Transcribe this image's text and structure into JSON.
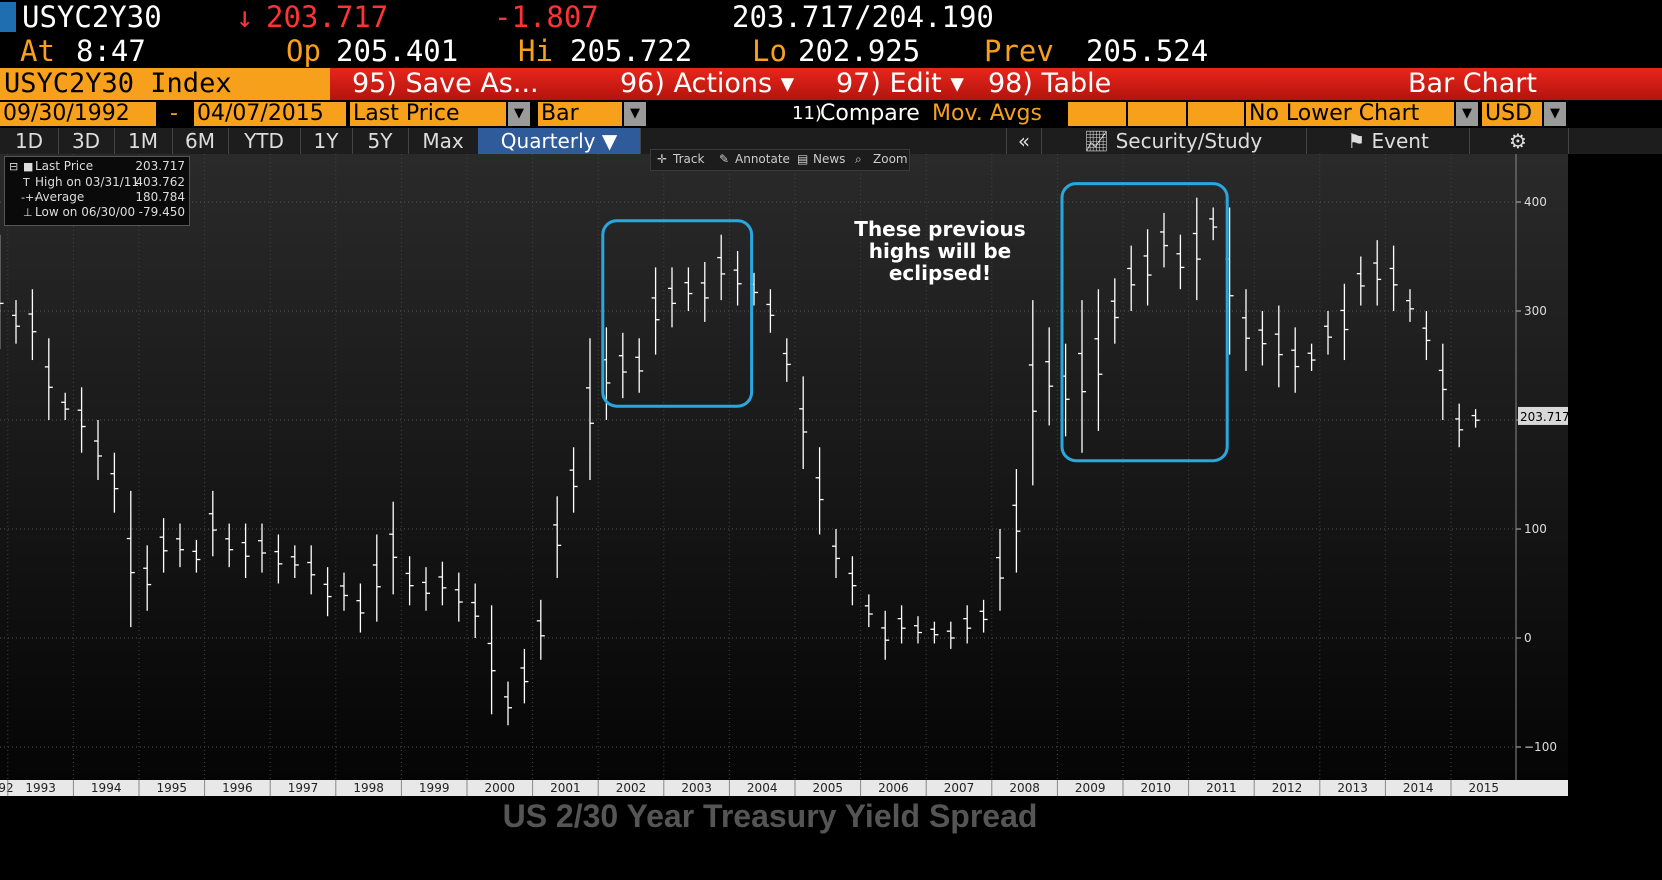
{
  "header": {
    "ticker": "USYC2Y30",
    "change_arrow": "↓",
    "last": "203.717",
    "change": "-1.807",
    "bid_ask": "203.717/204.190",
    "at_label": "At",
    "time": "8:47",
    "open_label": "Op",
    "open": "205.401",
    "high_label": "Hi",
    "high": "205.722",
    "low_label": "Lo",
    "low": "202.925",
    "prev_label": "Prev",
    "prev": "205.524"
  },
  "menu": {
    "index": "USYC2Y30 Index",
    "save_as": "95) Save As...",
    "actions": "96) Actions ▾",
    "edit": "97) Edit ▾",
    "table": "98) Table",
    "chart_type": "Bar Chart"
  },
  "options": {
    "start_date": "09/30/1992",
    "dash": "-",
    "end_date": "04/07/2015",
    "field": "Last Price",
    "style": "Bar",
    "compare_num": "11)",
    "compare": "Compare",
    "mov_avgs": "Mov. Avgs",
    "lower_chart": "No Lower Chart",
    "currency": "USD"
  },
  "periods": [
    "1D",
    "3D",
    "1M",
    "6M",
    "YTD",
    "1Y",
    "5Y",
    "Max"
  ],
  "period_selected": "Quarterly ▼",
  "right_tools": {
    "collapse": "«",
    "security_study": "Security/Study",
    "event": "Event",
    "gear": "⚙"
  },
  "toolbar": {
    "track": "Track",
    "annotate": "Annotate",
    "news": "News",
    "zoom": "Zoom"
  },
  "legend": {
    "last_label": "Last Price",
    "last_value": "203.717",
    "high_label": "High on 03/31/11",
    "high_value": "403.762",
    "avg_label": "Average",
    "avg_value": "180.784",
    "low_label": "Low on 06/30/00",
    "low_value": "-79.450"
  },
  "annotation": [
    "These previous",
    "highs will be",
    "eclipsed!"
  ],
  "caption": "US 2/30 Year Treasury Yield Spread",
  "colors": {
    "amber": "#f7a01c",
    "red": "#e8261c",
    "highlight": "#29a8e0",
    "bar": "#ffffff"
  },
  "chart_data": {
    "type": "bar",
    "subtype": "ohlc",
    "period": "quarterly",
    "y_ticks": [
      -100,
      0,
      100,
      200,
      300,
      400
    ],
    "last_price_label": "203.717",
    "x_year_labels": [
      "92",
      "1993",
      "1994",
      "1995",
      "1996",
      "1997",
      "1998",
      "1999",
      "2000",
      "2001",
      "2002",
      "2003",
      "2004",
      "2005",
      "2006",
      "2007",
      "2008",
      "2009",
      "2010",
      "2011",
      "2012",
      "2013",
      "2014",
      "2015"
    ],
    "highlight_periods": [
      [
        "2002Q2",
        "2004Q1"
      ],
      [
        "2009Q2",
        "2011Q2"
      ]
    ],
    "bars": [
      {
        "q": "1992Q3",
        "high": 360,
        "low": 280
      },
      {
        "q": "1992Q4",
        "high": 370,
        "low": 265
      },
      {
        "q": "1993Q1",
        "high": 310,
        "low": 270
      },
      {
        "q": "1993Q2",
        "high": 320,
        "low": 255
      },
      {
        "q": "1993Q3",
        "high": 275,
        "low": 200
      },
      {
        "q": "1993Q4",
        "high": 225,
        "low": 200
      },
      {
        "q": "1994Q1",
        "high": 230,
        "low": 170
      },
      {
        "q": "1994Q2",
        "high": 200,
        "low": 145
      },
      {
        "q": "1994Q3",
        "high": 170,
        "low": 115
      },
      {
        "q": "1994Q4",
        "high": 135,
        "low": 10
      },
      {
        "q": "1995Q1",
        "high": 85,
        "low": 25
      },
      {
        "q": "1995Q2",
        "high": 110,
        "low": 60
      },
      {
        "q": "1995Q3",
        "high": 105,
        "low": 65
      },
      {
        "q": "1995Q4",
        "high": 90,
        "low": 60
      },
      {
        "q": "1996Q1",
        "high": 135,
        "low": 75
      },
      {
        "q": "1996Q2",
        "high": 105,
        "low": 65
      },
      {
        "q": "1996Q3",
        "high": 105,
        "low": 55
      },
      {
        "q": "1996Q4",
        "high": 105,
        "low": 60
      },
      {
        "q": "1997Q1",
        "high": 95,
        "low": 50
      },
      {
        "q": "1997Q2",
        "high": 85,
        "low": 55
      },
      {
        "q": "1997Q3",
        "high": 85,
        "low": 40
      },
      {
        "q": "1997Q4",
        "high": 65,
        "low": 20
      },
      {
        "q": "1998Q1",
        "high": 60,
        "low": 25
      },
      {
        "q": "1998Q2",
        "high": 50,
        "low": 5
      },
      {
        "q": "1998Q3",
        "high": 95,
        "low": 15
      },
      {
        "q": "1998Q4",
        "high": 125,
        "low": 40
      },
      {
        "q": "1999Q1",
        "high": 75,
        "low": 30
      },
      {
        "q": "1999Q2",
        "high": 65,
        "low": 25
      },
      {
        "q": "1999Q3",
        "high": 70,
        "low": 30
      },
      {
        "q": "1999Q4",
        "high": 60,
        "low": 15
      },
      {
        "q": "2000Q1",
        "high": 50,
        "low": 0
      },
      {
        "q": "2000Q2",
        "high": 30,
        "low": -70
      },
      {
        "q": "2000Q3",
        "high": -40,
        "low": -80
      },
      {
        "q": "2000Q4",
        "high": -10,
        "low": -60
      },
      {
        "q": "2001Q1",
        "high": 35,
        "low": -20
      },
      {
        "q": "2001Q2",
        "high": 130,
        "low": 55
      },
      {
        "q": "2001Q3",
        "high": 175,
        "low": 115
      },
      {
        "q": "2001Q4",
        "high": 275,
        "low": 145
      },
      {
        "q": "2002Q1",
        "high": 285,
        "low": 200
      },
      {
        "q": "2002Q2",
        "high": 280,
        "low": 220
      },
      {
        "q": "2002Q3",
        "high": 275,
        "low": 225
      },
      {
        "q": "2002Q4",
        "high": 340,
        "low": 260
      },
      {
        "q": "2003Q1",
        "high": 340,
        "low": 285
      },
      {
        "q": "2003Q2",
        "high": 340,
        "low": 300
      },
      {
        "q": "2003Q3",
        "high": 345,
        "low": 290
      },
      {
        "q": "2003Q4",
        "high": 370,
        "low": 310
      },
      {
        "q": "2004Q1",
        "high": 355,
        "low": 305
      },
      {
        "q": "2004Q2",
        "high": 335,
        "low": 305
      },
      {
        "q": "2004Q3",
        "high": 320,
        "low": 280
      },
      {
        "q": "2004Q4",
        "high": 275,
        "low": 235
      },
      {
        "q": "2005Q1",
        "high": 240,
        "low": 155
      },
      {
        "q": "2005Q2",
        "high": 175,
        "low": 95
      },
      {
        "q": "2005Q3",
        "high": 100,
        "low": 55
      },
      {
        "q": "2005Q4",
        "high": 75,
        "low": 30
      },
      {
        "q": "2006Q1",
        "high": 40,
        "low": 10
      },
      {
        "q": "2006Q2",
        "high": 25,
        "low": -20
      },
      {
        "q": "2006Q3",
        "high": 30,
        "low": -5
      },
      {
        "q": "2006Q4",
        "high": 20,
        "low": -5
      },
      {
        "q": "2007Q1",
        "high": 15,
        "low": -5
      },
      {
        "q": "2007Q2",
        "high": 15,
        "low": -10
      },
      {
        "q": "2007Q3",
        "high": 30,
        "low": -5
      },
      {
        "q": "2007Q4",
        "high": 35,
        "low": 5
      },
      {
        "q": "2008Q1",
        "high": 100,
        "low": 25
      },
      {
        "q": "2008Q2",
        "high": 155,
        "low": 60
      },
      {
        "q": "2008Q3",
        "high": 310,
        "low": 140
      },
      {
        "q": "2008Q4",
        "high": 285,
        "low": 195
      },
      {
        "q": "2009Q1",
        "high": 270,
        "low": 185
      },
      {
        "q": "2009Q2",
        "high": 310,
        "low": 170
      },
      {
        "q": "2009Q3",
        "high": 320,
        "low": 190
      },
      {
        "q": "2009Q4",
        "high": 330,
        "low": 270
      },
      {
        "q": "2010Q1",
        "high": 360,
        "low": 300
      },
      {
        "q": "2010Q2",
        "high": 375,
        "low": 305
      },
      {
        "q": "2010Q3",
        "high": 390,
        "low": 340
      },
      {
        "q": "2010Q4",
        "high": 370,
        "low": 320
      },
      {
        "q": "2011Q1",
        "high": 404,
        "low": 310
      },
      {
        "q": "2011Q2",
        "high": 395,
        "low": 365
      },
      {
        "q": "2011Q3",
        "high": 395,
        "low": 260
      },
      {
        "q": "2011Q4",
        "high": 320,
        "low": 245
      },
      {
        "q": "2012Q1",
        "high": 300,
        "low": 250
      },
      {
        "q": "2012Q2",
        "high": 305,
        "low": 230
      },
      {
        "q": "2012Q3",
        "high": 285,
        "low": 225
      },
      {
        "q": "2012Q4",
        "high": 270,
        "low": 245
      },
      {
        "q": "2013Q1",
        "high": 300,
        "low": 260
      },
      {
        "q": "2013Q2",
        "high": 325,
        "low": 255
      },
      {
        "q": "2013Q3",
        "high": 350,
        "low": 305
      },
      {
        "q": "2013Q4",
        "high": 365,
        "low": 305
      },
      {
        "q": "2014Q1",
        "high": 360,
        "low": 300
      },
      {
        "q": "2014Q2",
        "high": 320,
        "low": 290
      },
      {
        "q": "2014Q3",
        "high": 300,
        "low": 255
      },
      {
        "q": "2014Q4",
        "high": 270,
        "low": 200
      },
      {
        "q": "2015Q1",
        "high": 215,
        "low": 175
      },
      {
        "q": "2015Q2",
        "high": 210,
        "low": 193
      }
    ]
  }
}
